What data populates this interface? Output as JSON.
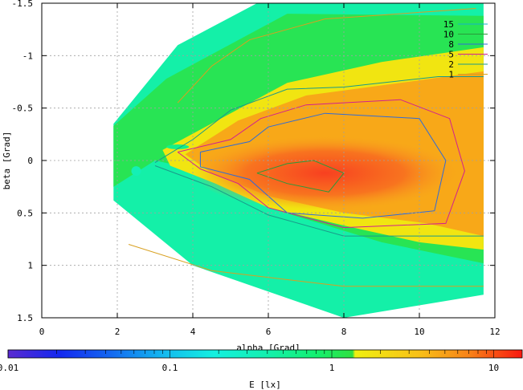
{
  "chart_data": {
    "type": "heatmap",
    "xlabel": "alpha [Grad]",
    "ylabel": "beta [Grad]",
    "colorbar_label": "E [lx]",
    "xlim": [
      0,
      12
    ],
    "ylim": [
      -1.5,
      1.5
    ],
    "y_reversed": true,
    "x_ticks": [
      "0",
      "2",
      "4",
      "6",
      "8",
      "10",
      "12"
    ],
    "y_ticks": [
      "-1.5",
      "-1",
      "-0.5",
      "0",
      "0.5",
      "1",
      "1.5"
    ],
    "colorbar_ticks": [
      "0.01",
      "0.1",
      "1",
      "10"
    ],
    "colorbar_range": [
      0.01,
      15
    ],
    "colorbar_scale": "log",
    "grid": true,
    "legend_position": "top-right",
    "contour_levels": [
      {
        "name": "15",
        "color": "#14b4c8"
      },
      {
        "name": "10",
        "color": "#2a9a3a"
      },
      {
        "name": "8",
        "color": "#2f6bd8"
      },
      {
        "name": "5",
        "color": "#d12090"
      },
      {
        "name": "2",
        "color": "#1a9a8a"
      },
      {
        "name": "1",
        "color": "#d8a020"
      }
    ],
    "colormap": [
      {
        "value": 0.01,
        "color": "#5a2ad0"
      },
      {
        "value": 0.03,
        "color": "#1428f0"
      },
      {
        "value": 0.08,
        "color": "#14a8f0"
      },
      {
        "value": 0.2,
        "color": "#14f0d8"
      },
      {
        "value": 0.5,
        "color": "#14f08a"
      },
      {
        "value": 1.3,
        "color": "#30e040"
      },
      {
        "value": 2.2,
        "color": "#f0f010"
      },
      {
        "value": 5,
        "color": "#f8a818"
      },
      {
        "value": 15,
        "color": "#f81810"
      }
    ]
  }
}
